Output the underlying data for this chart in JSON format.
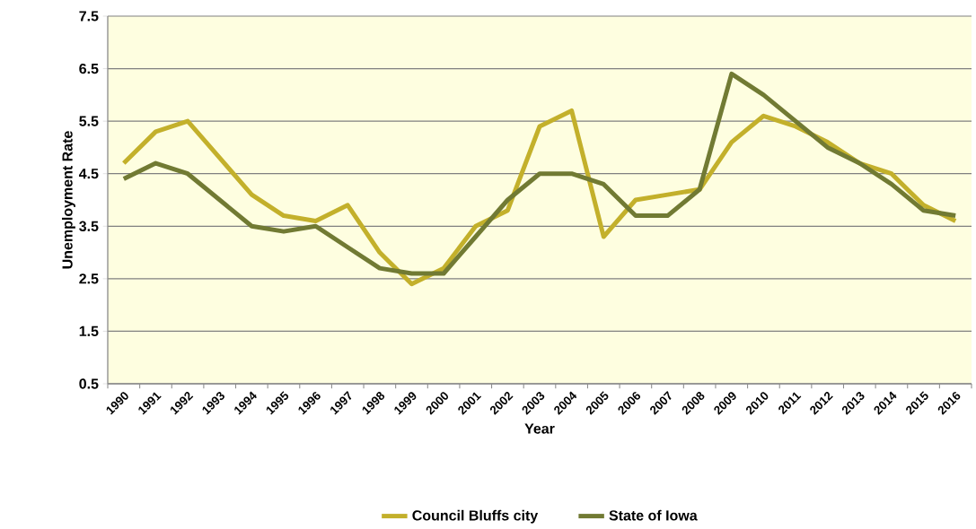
{
  "chart_data": {
    "type": "line",
    "xlabel": "Year",
    "ylabel": "Unemployment Rate",
    "categories": [
      "1990",
      "1991",
      "1992",
      "1993",
      "1994",
      "1995",
      "1996",
      "1997",
      "1998",
      "1999",
      "2000",
      "2001",
      "2002",
      "2003",
      "2004",
      "2005",
      "2006",
      "2007",
      "2008",
      "2009",
      "2010",
      "2011",
      "2012",
      "2013",
      "2014",
      "2015",
      "2016"
    ],
    "series": [
      {
        "name": "Council Bluffs city",
        "color": "#c3b02b",
        "values": [
          4.7,
          5.3,
          5.5,
          4.8,
          4.1,
          3.7,
          3.6,
          3.9,
          3.0,
          2.4,
          2.7,
          3.5,
          3.8,
          5.4,
          5.7,
          3.3,
          4.0,
          4.1,
          4.2,
          5.1,
          5.6,
          5.4,
          5.1,
          4.7,
          4.5,
          3.9,
          3.6
        ]
      },
      {
        "name": "State of Iowa",
        "color": "#717a33",
        "values": [
          4.4,
          4.7,
          4.5,
          4.0,
          3.5,
          3.4,
          3.5,
          3.1,
          2.7,
          2.6,
          2.6,
          3.3,
          4.0,
          4.5,
          4.5,
          4.3,
          3.7,
          3.7,
          4.2,
          6.4,
          6.0,
          5.5,
          5.0,
          4.7,
          4.3,
          3.8,
          3.7
        ]
      }
    ],
    "ylim": [
      0.5,
      7.5
    ],
    "yticks": [
      0.5,
      1.5,
      2.5,
      3.5,
      4.5,
      5.5,
      6.5,
      7.5
    ],
    "grid": "y",
    "legend": "bottom"
  }
}
